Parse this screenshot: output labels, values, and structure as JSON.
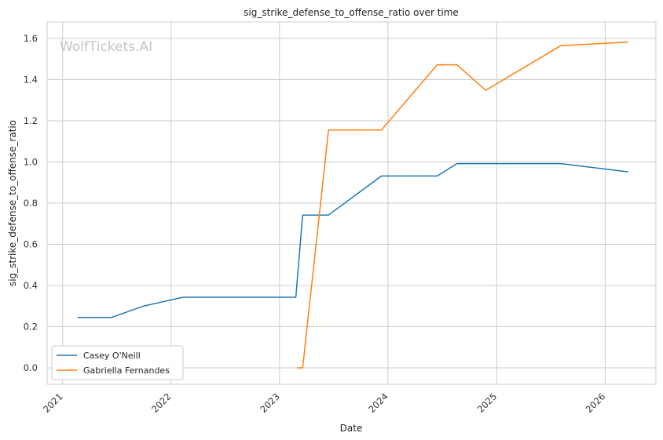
{
  "chart_data": {
    "type": "line",
    "title": "sig_strike_defense_to_offense_ratio over time",
    "xlabel": "Date",
    "ylabel": "sig_strike_defense_to_offense_ratio",
    "watermark": "WolfTickets.AI",
    "x_ticks": [
      "2021",
      "2022",
      "2023",
      "2024",
      "2025",
      "2026"
    ],
    "y_ticks": [
      "0.0",
      "0.2",
      "0.4",
      "0.6",
      "0.8",
      "1.0",
      "1.2",
      "1.4",
      "1.6"
    ],
    "xlim": [
      "2020-11-10",
      "2026-06-21"
    ],
    "ylim": [
      -0.08,
      1.68
    ],
    "grid": true,
    "legend_position": "lower-left",
    "series": [
      {
        "name": "Casey O'Neill",
        "color": "#1f77b4",
        "points": [
          {
            "x": "2021-02-20",
            "y": 0.245
          },
          {
            "x": "2021-06-15",
            "y": 0.245
          },
          {
            "x": "2021-09-30",
            "y": 0.3
          },
          {
            "x": "2022-02-10",
            "y": 0.343
          },
          {
            "x": "2023-02-25",
            "y": 0.343
          },
          {
            "x": "2023-03-20",
            "y": 0.742
          },
          {
            "x": "2023-06-15",
            "y": 0.742
          },
          {
            "x": "2023-12-10",
            "y": 0.932
          },
          {
            "x": "2024-06-15",
            "y": 0.932
          },
          {
            "x": "2024-08-20",
            "y": 0.992
          },
          {
            "x": "2025-08-05",
            "y": 0.992
          },
          {
            "x": "2026-03-20",
            "y": 0.952
          }
        ]
      },
      {
        "name": "Gabriella Fernandes",
        "color": "#ff7f0e",
        "points": [
          {
            "x": "2023-03-01",
            "y": 0.0
          },
          {
            "x": "2023-03-20",
            "y": 0.0
          },
          {
            "x": "2023-06-15",
            "y": 1.155
          },
          {
            "x": "2023-12-10",
            "y": 1.155
          },
          {
            "x": "2024-06-15",
            "y": 1.472
          },
          {
            "x": "2024-08-20",
            "y": 1.472
          },
          {
            "x": "2024-11-25",
            "y": 1.348
          },
          {
            "x": "2025-08-05",
            "y": 1.565
          },
          {
            "x": "2026-03-20",
            "y": 1.582
          }
        ]
      }
    ]
  }
}
